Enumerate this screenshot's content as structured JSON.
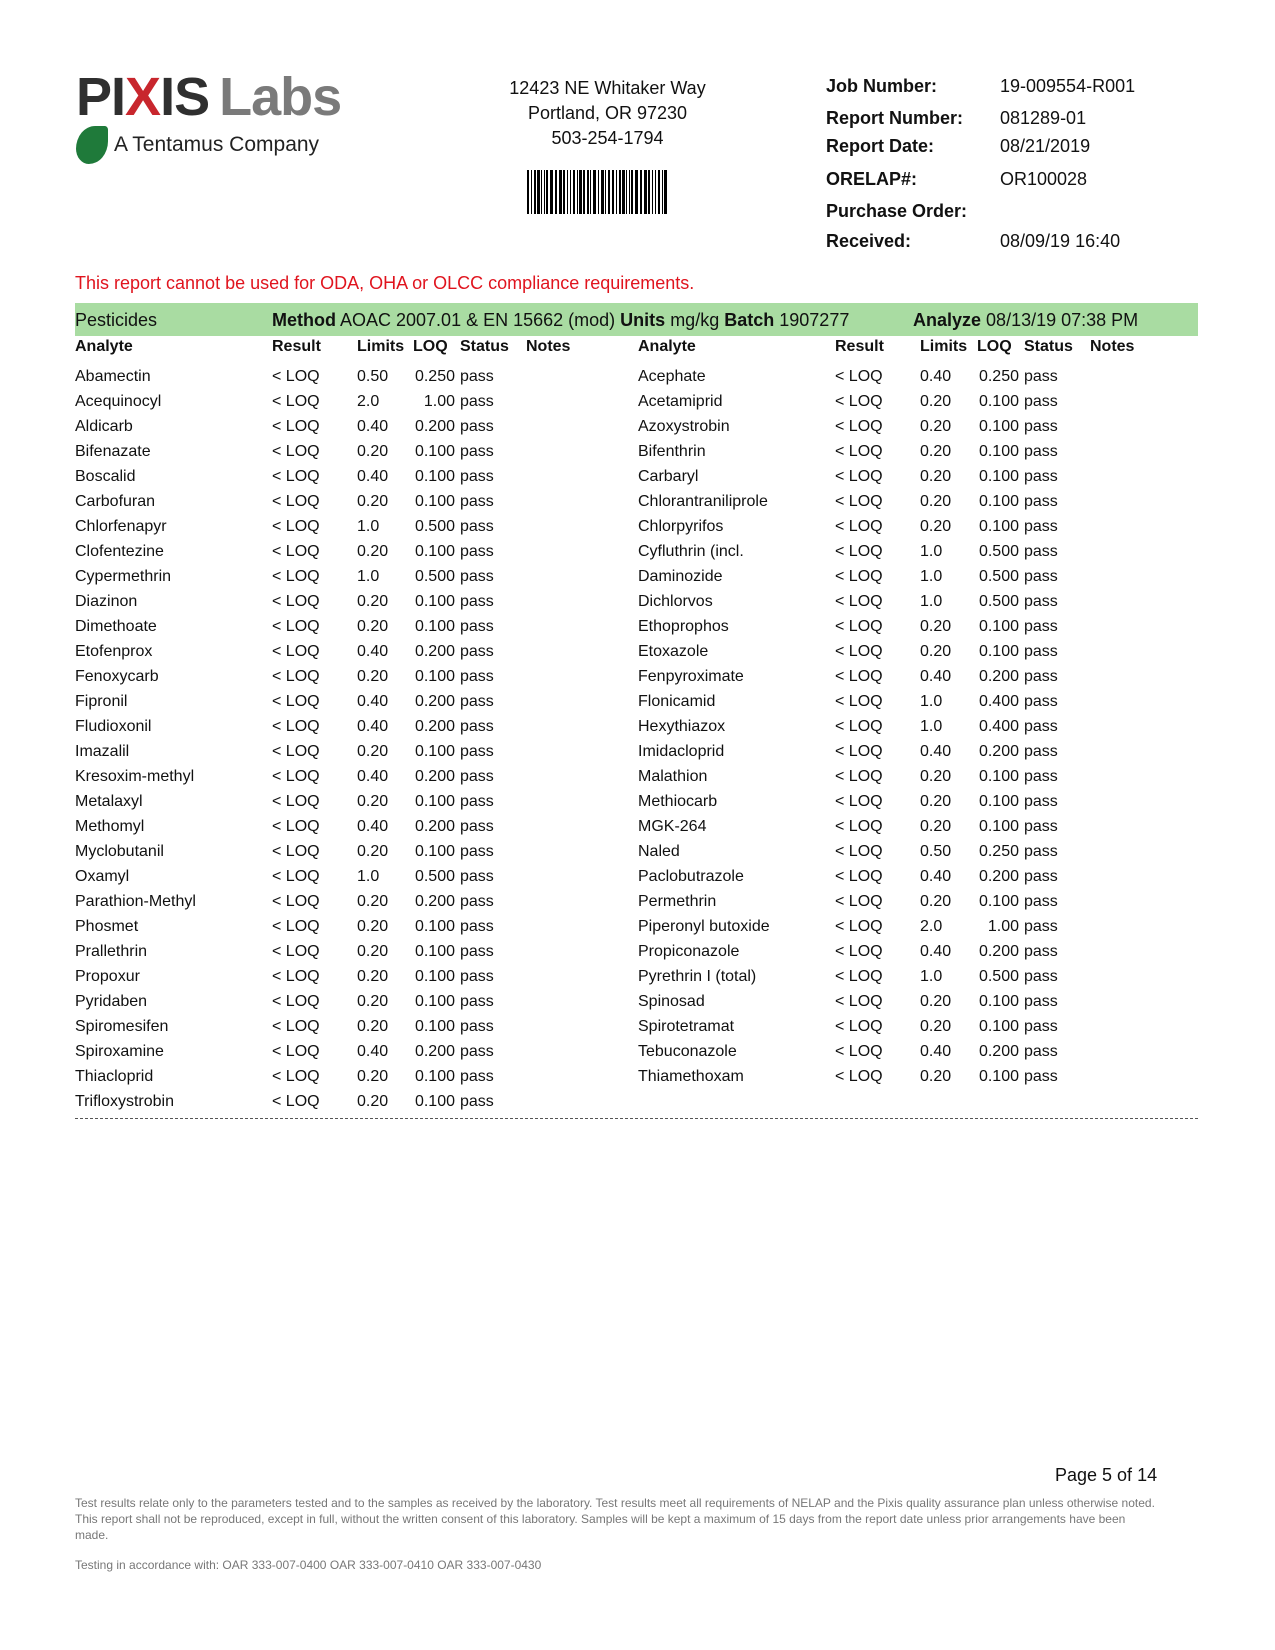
{
  "logo": {
    "brand_part1": "PI",
    "brand_x": "X",
    "brand_part2": "IS",
    "brand_labs": "Labs",
    "tagline": "A Tentamus Company"
  },
  "address": {
    "line1": "12423 NE Whitaker Way",
    "line2": "Portland, OR 97230",
    "phone": "503-254-1794"
  },
  "info": [
    {
      "label": "Job Number:",
      "value": "19-009554-R001"
    },
    {
      "label": "Report Number:",
      "value": "081289-01"
    },
    {
      "label": "Report Date:",
      "value": "08/21/2019"
    },
    {
      "label": "ORELAP#:",
      "value": "OR100028"
    },
    {
      "label": "Purchase Order:",
      "value": ""
    },
    {
      "label": "Received:",
      "value": "08/09/19  16:40"
    }
  ],
  "warning": "This report cannot be used for ODA, OHA or OLCC compliance requirements.",
  "section": {
    "title": "Pesticides",
    "method_label": "Method",
    "method": "AOAC 2007.01 & EN 15662 (mod)",
    "units_label": "Units",
    "units": "mg/kg",
    "batch_label": "Batch",
    "batch": "1907277",
    "analyze_label": "Analyze",
    "analyze": "08/13/19  07:38 PM"
  },
  "columns": [
    "Analyte",
    "Result",
    "Limits",
    "LOQ",
    "Status",
    "Notes"
  ],
  "left_rows": [
    [
      "Abamectin",
      "< LOQ",
      "0.50",
      "0.250",
      "pass"
    ],
    [
      "Acequinocyl",
      "< LOQ",
      "2.0",
      "1.00",
      "pass"
    ],
    [
      "Aldicarb",
      "< LOQ",
      "0.40",
      "0.200",
      "pass"
    ],
    [
      "Bifenazate",
      "< LOQ",
      "0.20",
      "0.100",
      "pass"
    ],
    [
      "Boscalid",
      "< LOQ",
      "0.40",
      "0.100",
      "pass"
    ],
    [
      "Carbofuran",
      "< LOQ",
      "0.20",
      "0.100",
      "pass"
    ],
    [
      "Chlorfenapyr",
      "< LOQ",
      "1.0",
      "0.500",
      "pass"
    ],
    [
      "Clofentezine",
      "< LOQ",
      "0.20",
      "0.100",
      "pass"
    ],
    [
      "Cypermethrin",
      "< LOQ",
      "1.0",
      "0.500",
      "pass"
    ],
    [
      "Diazinon",
      "< LOQ",
      "0.20",
      "0.100",
      "pass"
    ],
    [
      "Dimethoate",
      "< LOQ",
      "0.20",
      "0.100",
      "pass"
    ],
    [
      "Etofenprox",
      "< LOQ",
      "0.40",
      "0.200",
      "pass"
    ],
    [
      "Fenoxycarb",
      "< LOQ",
      "0.20",
      "0.100",
      "pass"
    ],
    [
      "Fipronil",
      "< LOQ",
      "0.40",
      "0.200",
      "pass"
    ],
    [
      "Fludioxonil",
      "< LOQ",
      "0.40",
      "0.200",
      "pass"
    ],
    [
      "Imazalil",
      "< LOQ",
      "0.20",
      "0.100",
      "pass"
    ],
    [
      "Kresoxim-methyl",
      "< LOQ",
      "0.40",
      "0.200",
      "pass"
    ],
    [
      "Metalaxyl",
      "< LOQ",
      "0.20",
      "0.100",
      "pass"
    ],
    [
      "Methomyl",
      "< LOQ",
      "0.40",
      "0.200",
      "pass"
    ],
    [
      "Myclobutanil",
      "< LOQ",
      "0.20",
      "0.100",
      "pass"
    ],
    [
      "Oxamyl",
      "< LOQ",
      "1.0",
      "0.500",
      "pass"
    ],
    [
      "Parathion-Methyl",
      "< LOQ",
      "0.20",
      "0.200",
      "pass"
    ],
    [
      "Phosmet",
      "< LOQ",
      "0.20",
      "0.100",
      "pass"
    ],
    [
      "Prallethrin",
      "< LOQ",
      "0.20",
      "0.100",
      "pass"
    ],
    [
      "Propoxur",
      "< LOQ",
      "0.20",
      "0.100",
      "pass"
    ],
    [
      "Pyridaben",
      "< LOQ",
      "0.20",
      "0.100",
      "pass"
    ],
    [
      "Spiromesifen",
      "< LOQ",
      "0.20",
      "0.100",
      "pass"
    ],
    [
      "Spiroxamine",
      "< LOQ",
      "0.40",
      "0.200",
      "pass"
    ],
    [
      "Thiacloprid",
      "< LOQ",
      "0.20",
      "0.100",
      "pass"
    ],
    [
      "Trifloxystrobin",
      "< LOQ",
      "0.20",
      "0.100",
      "pass"
    ]
  ],
  "right_rows": [
    [
      "Acephate",
      "< LOQ",
      "0.40",
      "0.250",
      "pass"
    ],
    [
      "Acetamiprid",
      "< LOQ",
      "0.20",
      "0.100",
      "pass"
    ],
    [
      "Azoxystrobin",
      "< LOQ",
      "0.20",
      "0.100",
      "pass"
    ],
    [
      "Bifenthrin",
      "< LOQ",
      "0.20",
      "0.100",
      "pass"
    ],
    [
      "Carbaryl",
      "< LOQ",
      "0.20",
      "0.100",
      "pass"
    ],
    [
      "Chlorantraniliprole",
      "< LOQ",
      "0.20",
      "0.100",
      "pass"
    ],
    [
      "Chlorpyrifos",
      "< LOQ",
      "0.20",
      "0.100",
      "pass"
    ],
    [
      "Cyfluthrin (incl.",
      "< LOQ",
      "1.0",
      "0.500",
      "pass"
    ],
    [
      "Daminozide",
      "< LOQ",
      "1.0",
      "0.500",
      "pass"
    ],
    [
      "Dichlorvos",
      "< LOQ",
      "1.0",
      "0.500",
      "pass"
    ],
    [
      "Ethoprophos",
      "< LOQ",
      "0.20",
      "0.100",
      "pass"
    ],
    [
      "Etoxazole",
      "< LOQ",
      "0.20",
      "0.100",
      "pass"
    ],
    [
      "Fenpyroximate",
      "< LOQ",
      "0.40",
      "0.200",
      "pass"
    ],
    [
      "Flonicamid",
      "< LOQ",
      "1.0",
      "0.400",
      "pass"
    ],
    [
      "Hexythiazox",
      "< LOQ",
      "1.0",
      "0.400",
      "pass"
    ],
    [
      "Imidacloprid",
      "< LOQ",
      "0.40",
      "0.200",
      "pass"
    ],
    [
      "Malathion",
      "< LOQ",
      "0.20",
      "0.100",
      "pass"
    ],
    [
      "Methiocarb",
      "< LOQ",
      "0.20",
      "0.100",
      "pass"
    ],
    [
      "MGK-264",
      "< LOQ",
      "0.20",
      "0.100",
      "pass"
    ],
    [
      "Naled",
      "< LOQ",
      "0.50",
      "0.250",
      "pass"
    ],
    [
      "Paclobutrazole",
      "< LOQ",
      "0.40",
      "0.200",
      "pass"
    ],
    [
      "Permethrin",
      "< LOQ",
      "0.20",
      "0.100",
      "pass"
    ],
    [
      "Piperonyl butoxide",
      "< LOQ",
      "2.0",
      "1.00",
      "pass"
    ],
    [
      "Propiconazole",
      "< LOQ",
      "0.40",
      "0.200",
      "pass"
    ],
    [
      "Pyrethrin I (total)",
      "< LOQ",
      "1.0",
      "0.500",
      "pass"
    ],
    [
      "Spinosad",
      "< LOQ",
      "0.20",
      "0.100",
      "pass"
    ],
    [
      "Spirotetramat",
      "< LOQ",
      "0.20",
      "0.100",
      "pass"
    ],
    [
      "Tebuconazole",
      "< LOQ",
      "0.40",
      "0.200",
      "pass"
    ],
    [
      "Thiamethoxam",
      "< LOQ",
      "0.20",
      "0.100",
      "pass"
    ]
  ],
  "footer": {
    "page": "Page 5 of 14",
    "disclaimer": "Test results relate only to the parameters tested and to the samples as received by the laboratory. Test results meet all requirements of NELAP and the Pixis quality assurance plan unless otherwise noted. This report shall not be reproduced, except in full, without the written consent of this laboratory. Samples will be kept a maximum of 15 days from the report date unless prior arrangements have been made.",
    "testing": "Testing in accordance with:  OAR 333-007-0400 OAR 333-007-0410  OAR 333-007-0430"
  },
  "colors": {
    "header_bar": "#a9dca2",
    "warning": "#e0141e",
    "logo_x": "#c8262d",
    "logo_leaf": "#1f7a3a"
  }
}
